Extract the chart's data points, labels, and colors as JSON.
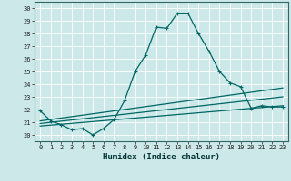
{
  "xlabel": "Humidex (Indice chaleur)",
  "xlim": [
    -0.5,
    23.5
  ],
  "ylim": [
    19.5,
    30.5
  ],
  "xticks": [
    0,
    1,
    2,
    3,
    4,
    5,
    6,
    7,
    8,
    9,
    10,
    11,
    12,
    13,
    14,
    15,
    16,
    17,
    18,
    19,
    20,
    21,
    22,
    23
  ],
  "yticks": [
    20,
    21,
    22,
    23,
    24,
    25,
    26,
    27,
    28,
    29,
    30
  ],
  "line_color": "#006666",
  "bg_color": "#cce8e8",
  "grid_color": "#ffffff",
  "series1_x": [
    0,
    1,
    2,
    3,
    4,
    5,
    6,
    7,
    8,
    9,
    10,
    11,
    12,
    13,
    14,
    15,
    16,
    17,
    18,
    19,
    20,
    21,
    22,
    23
  ],
  "series1_y": [
    21.9,
    21.1,
    20.8,
    20.4,
    20.5,
    20.0,
    20.5,
    21.2,
    22.7,
    25.0,
    26.3,
    28.5,
    28.4,
    29.6,
    29.6,
    28.0,
    26.6,
    25.0,
    24.1,
    23.8,
    22.1,
    22.3,
    22.2,
    22.2
  ],
  "series2_x": [
    0,
    23
  ],
  "series2_y": [
    21.1,
    23.7
  ],
  "series3_x": [
    0,
    23
  ],
  "series3_y": [
    20.9,
    23.0
  ],
  "series4_x": [
    0,
    23
  ],
  "series4_y": [
    20.7,
    22.3
  ]
}
